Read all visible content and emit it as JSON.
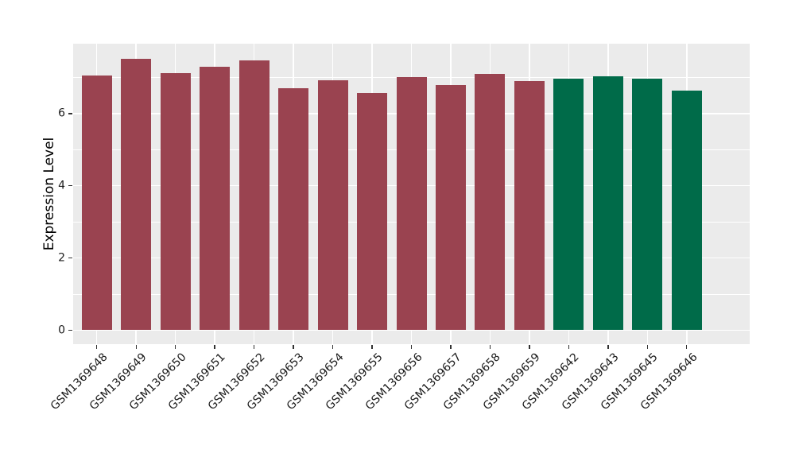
{
  "chart_data": {
    "type": "bar",
    "title": "",
    "xlabel": "",
    "ylabel": "Expression Level",
    "categories": [
      "GSM1369648",
      "GSM1369649",
      "GSM1369650",
      "GSM1369651",
      "GSM1369652",
      "GSM1369653",
      "GSM1369654",
      "GSM1369655",
      "GSM1369656",
      "GSM1369657",
      "GSM1369658",
      "GSM1369659",
      "GSM1369642",
      "GSM1369643",
      "GSM1369645",
      "GSM1369646"
    ],
    "values": [
      7.06,
      7.52,
      7.11,
      7.29,
      7.47,
      6.7,
      6.93,
      6.57,
      7.0,
      6.78,
      7.1,
      6.9,
      6.96,
      7.04,
      6.96,
      6.63
    ],
    "bar_groups": [
      "group1",
      "group1",
      "group1",
      "group1",
      "group1",
      "group1",
      "group1",
      "group1",
      "group1",
      "group1",
      "group1",
      "group1",
      "group2",
      "group2",
      "group2",
      "group2"
    ],
    "group_colors": {
      "group1": "#9A4350",
      "group2": "#006B49"
    },
    "yticks": [
      0,
      2,
      4,
      6
    ],
    "minor_yticks": [
      1,
      3,
      5,
      7
    ],
    "ylim": [
      0,
      7.9
    ],
    "grid": true,
    "legend_position": "none",
    "panel_background": "#EBEBEB",
    "gridline_color": "#FFFFFF",
    "axis_text_color": "#1A1A1A",
    "x_tick_label_rotation_deg": 45
  }
}
